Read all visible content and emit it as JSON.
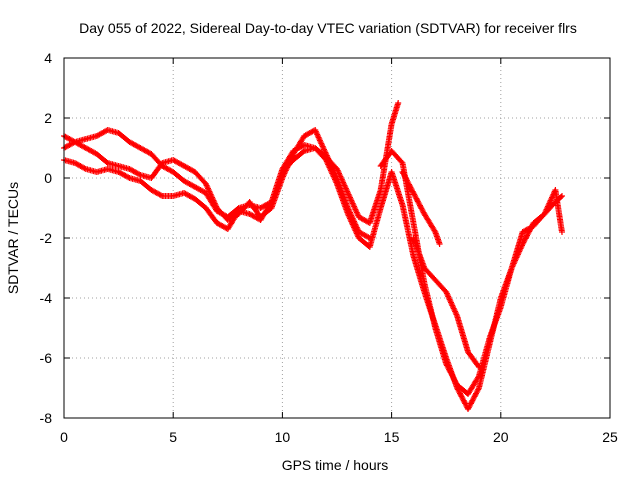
{
  "chart_data": {
    "type": "scatter",
    "title": "Day 055 of 2022, Sidereal Day-to-day VTEC variation (SDTVAR) for receiver flrs",
    "xlabel": "GPS time / hours",
    "ylabel": "SDTVAR / TECUs",
    "xlim": [
      0,
      25
    ],
    "ylim": [
      -8,
      4
    ],
    "xticks": [
      0,
      5,
      10,
      15,
      20,
      25
    ],
    "yticks": [
      -8,
      -6,
      -4,
      -2,
      0,
      2,
      4
    ],
    "xtick_labels": [
      "0",
      "5",
      "10",
      "15",
      "20",
      "25"
    ],
    "ytick_labels": [
      "-8",
      "-6",
      "-4",
      "-2",
      "0",
      "2",
      "4"
    ],
    "grid": true,
    "marker": "+",
    "color": "#ff0000",
    "series": [
      {
        "x": [
          0,
          0.5,
          1,
          1.5,
          2,
          2.5,
          3,
          3.5,
          4,
          4.5,
          5,
          5.5,
          6,
          6.5,
          7,
          7.5,
          8,
          8.5,
          9,
          9.5,
          10,
          10.5,
          11,
          11.5,
          12,
          12.5,
          13,
          13.5,
          14
        ],
        "y": [
          1.4,
          1.2,
          1.0,
          0.8,
          0.5,
          0.4,
          0.3,
          0.1,
          0.0,
          0.5,
          0.6,
          0.4,
          0.2,
          -0.2,
          -1.0,
          -1.4,
          -1.2,
          -0.8,
          -1.3,
          -1.0,
          0.0,
          0.8,
          1.4,
          1.6,
          0.8,
          0.0,
          -1.0,
          -1.8,
          -2.0
        ]
      },
      {
        "x": [
          0,
          0.5,
          1,
          1.5,
          2,
          2.5,
          3,
          3.5,
          4,
          4.5,
          5,
          5.5,
          6,
          6.5,
          7,
          7.5,
          8,
          8.5,
          9,
          9.5,
          10,
          10.5,
          11,
          11.5,
          12,
          12.5,
          13,
          13.5,
          14,
          14.5,
          15,
          15.5,
          16,
          16.5,
          17,
          17.5,
          18,
          18.5,
          19,
          19.5,
          20,
          20.5,
          21,
          21.5,
          22,
          22.5,
          22.8
        ],
        "y": [
          0.6,
          0.5,
          0.3,
          0.2,
          0.3,
          0.2,
          0.0,
          -0.1,
          -0.4,
          -0.6,
          -0.6,
          -0.5,
          -0.7,
          -1.0,
          -1.5,
          -1.7,
          -1.1,
          -1.2,
          -1.4,
          -0.8,
          0.3,
          0.9,
          1.1,
          1.0,
          0.6,
          -0.2,
          -1.2,
          -2.0,
          -2.3,
          -1.0,
          0.2,
          -0.9,
          -2.6,
          -3.8,
          -4.9,
          -6.0,
          -7.0,
          -7.7,
          -7.0,
          -5.5,
          -4.0,
          -3.0,
          -2.2,
          -1.5,
          -1.2,
          -0.8,
          -0.6
        ]
      },
      {
        "x": [
          0,
          0.5,
          1,
          1.5,
          2,
          2.5,
          3,
          4,
          4.5,
          5,
          5.5,
          6,
          6.5,
          7,
          7.5,
          8,
          8.5,
          9,
          9.5,
          10,
          10.5,
          11,
          11.5,
          12,
          12.5,
          13,
          13.5,
          14,
          14.5,
          15,
          15.3
        ],
        "y": [
          1.0,
          1.2,
          1.3,
          1.4,
          1.6,
          1.5,
          1.2,
          0.8,
          0.4,
          0.2,
          -0.1,
          -0.3,
          -0.5,
          -1.1,
          -1.3,
          -1.0,
          -0.9,
          -1.0,
          -0.8,
          0.2,
          0.6,
          0.9,
          1.0,
          0.7,
          0.3,
          -0.5,
          -1.3,
          -1.5,
          -0.4,
          1.8,
          2.5
        ]
      },
      {
        "x": [
          14.5,
          15,
          15.5,
          16,
          16.5,
          17,
          17.5,
          18,
          18.5,
          19,
          19.5,
          20,
          20.5,
          21,
          21.5,
          22,
          22.5,
          22.8
        ],
        "y": [
          0.4,
          0.9,
          0.5,
          -1.5,
          -3.5,
          -5.0,
          -6.2,
          -6.9,
          -7.2,
          -6.6,
          -5.3,
          -4.3,
          -3.0,
          -1.8,
          -1.6,
          -1.2,
          -0.4,
          -1.8
        ]
      },
      {
        "x": [
          15.5,
          16,
          16.5,
          17,
          17.2
        ],
        "y": [
          0.2,
          -0.5,
          -1.2,
          -1.8,
          -2.2
        ]
      },
      {
        "x": [
          16,
          16.5,
          17,
          17.5,
          18,
          18.5,
          19
        ],
        "y": [
          -2.0,
          -3.0,
          -3.4,
          -3.8,
          -4.6,
          -5.8,
          -6.3
        ]
      }
    ]
  }
}
